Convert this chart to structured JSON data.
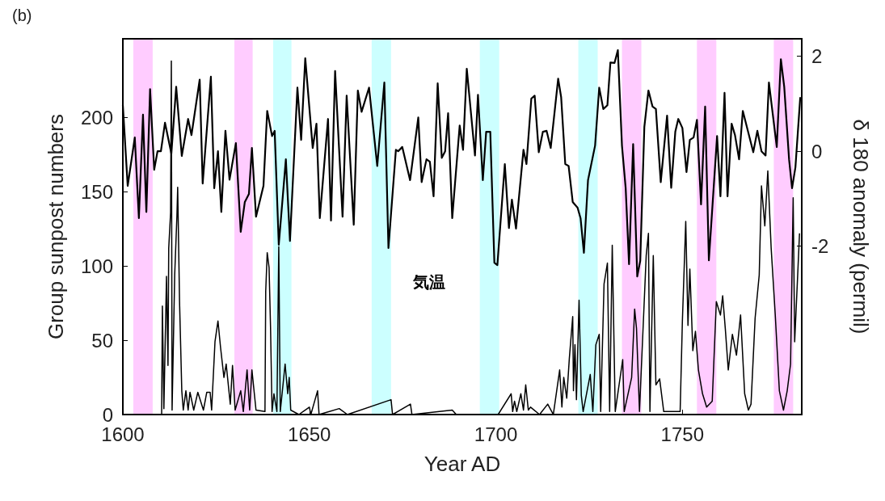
{
  "chart_data": {
    "type": "line",
    "title": "(b)",
    "xlabel": "Year AD",
    "ylabel": "Group sunpost numbers",
    "y2label": "δ 180 anomaly (permil)",
    "annotations": [
      "気温"
    ],
    "xlim": [
      1600,
      1782
    ],
    "xticks": [
      1600,
      1650,
      1700,
      1750
    ],
    "ylim": [
      0,
      253
    ],
    "yticks": [
      0,
      50,
      100,
      150,
      200
    ],
    "y2lim": [
      -5.55,
      2.37
    ],
    "y2ticks": [
      -2,
      0,
      2
    ],
    "grid": false,
    "marker": "none",
    "line_style": "solid",
    "bands": [
      {
        "axis": "x",
        "from": 1602.8,
        "to": 1608.0,
        "color": "#ffccff"
      },
      {
        "axis": "x",
        "from": 1629.9,
        "to": 1634.8,
        "color": "#ffccff"
      },
      {
        "axis": "x",
        "from": 1640.3,
        "to": 1645.2,
        "color": "#ccffff"
      },
      {
        "axis": "x",
        "from": 1666.7,
        "to": 1671.9,
        "color": "#ccffff"
      },
      {
        "axis": "x",
        "from": 1695.7,
        "to": 1700.9,
        "color": "#ccffff"
      },
      {
        "axis": "x",
        "from": 1722.1,
        "to": 1727.3,
        "color": "#ccffff"
      },
      {
        "axis": "x",
        "from": 1733.8,
        "to": 1739.0,
        "color": "#ffccff"
      },
      {
        "axis": "x",
        "from": 1753.9,
        "to": 1759.1,
        "color": "#ffccff"
      },
      {
        "axis": "x",
        "from": 1774.5,
        "to": 1779.7,
        "color": "#ffccff"
      }
    ],
    "series": [
      {
        "color": "#000000",
        "x": [
          1600,
          1610.4,
          1610.6,
          1611.0,
          1611.7,
          1612.1,
          1612.3,
          1612.8,
          1613.0,
          1613.2,
          1613.9,
          1614.5,
          1614.7,
          1615.2,
          1615.8,
          1616.2,
          1616.9,
          1617.5,
          1618.0,
          1619.0,
          1620.1,
          1621.6,
          1622.5,
          1623.4,
          1623.8,
          1624.7,
          1625.5,
          1626.2,
          1627.1,
          1627.7,
          1628.8,
          1629.4,
          1630.1,
          1631.6,
          1632.3,
          1633.3,
          1634.0,
          1634.6,
          1635.7,
          1638.1,
          1638.3,
          1638.7,
          1639.2,
          1639.6,
          1640.0,
          1640.5,
          1641.3,
          1641.8,
          1642.2,
          1643.5,
          1644.2,
          1644.6,
          1645.0,
          1647.2,
          1650.0,
          1650.4,
          1652.2,
          1652.6,
          1658.0,
          1660.2,
          1671.9,
          1672.3,
          1677.1,
          1677.5,
          1688.3,
          1689.4,
          1700.6,
          1704.1,
          1704.5,
          1705.0,
          1705.6,
          1706.7,
          1707.4,
          1708.0,
          1708.7,
          1709.3,
          1711.7,
          1713.9,
          1715.4,
          1717.1,
          1717.7,
          1718.2,
          1719.0,
          1719.7,
          1720.6,
          1720.8,
          1721.2,
          1721.6,
          1722.3,
          1722.9,
          1723.4,
          1725.3,
          1726.0,
          1726.8,
          1727.7,
          1728.1,
          1729.0,
          1729.9,
          1730.5,
          1731.2,
          1732.0,
          1734.0,
          1734.4,
          1736.4,
          1737.2,
          1737.7,
          1738.5,
          1740.3,
          1740.9,
          1741.3,
          1742.2,
          1742.9,
          1743.9,
          1745.0,
          1749.4,
          1750.0,
          1750.9,
          1751.5,
          1752.0,
          1752.8,
          1753.5,
          1754.3,
          1755.4,
          1756.5,
          1758.0,
          1759.1,
          1760.2,
          1760.8,
          1761.5,
          1762.3,
          1763.4,
          1764.5,
          1765.6,
          1766.7,
          1767.7,
          1768.4,
          1769.5,
          1770.6,
          1771.2,
          1772.1,
          1772.9,
          1773.8,
          1774.9,
          1776.0,
          1777.1,
          1778.1,
          1779.0,
          1779.7,
          1780.1,
          1781.0,
          1781.4
        ],
        "values": [
          0,
          0,
          73,
          4,
          93,
          33,
          112,
          136,
          238,
          3,
          94,
          134,
          153,
          76,
          16,
          3,
          16,
          3,
          15,
          3,
          15,
          3,
          15,
          15,
          3,
          49,
          63,
          45,
          25,
          34,
          7,
          33,
          3,
          16,
          2,
          30,
          3,
          30,
          3,
          2,
          83,
          109,
          99,
          58,
          2,
          14,
          2,
          113,
          2,
          34,
          14,
          25,
          3,
          0,
          5,
          0,
          16,
          0,
          4,
          0,
          10,
          0,
          7,
          0,
          3,
          0,
          0,
          14,
          2,
          9,
          2,
          14,
          3,
          20,
          3,
          5,
          0,
          7,
          0,
          30,
          5,
          25,
          11,
          38,
          66,
          16,
          47,
          10,
          77,
          13,
          2,
          27,
          2,
          47,
          54,
          2,
          88,
          102,
          2,
          114,
          2,
          37,
          2,
          25,
          71,
          58,
          2,
          107,
          122,
          2,
          107,
          20,
          24,
          2,
          2,
          63,
          130,
          60,
          98,
          43,
          56,
          30,
          14,
          5,
          9,
          76,
          67,
          80,
          58,
          30,
          54,
          40,
          67,
          14,
          3,
          7,
          65,
          94,
          154,
          127,
          164,
          112,
          67,
          16,
          3,
          16,
          34,
          146,
          49,
          99,
          122
        ]
      },
      {
        "color": "#000000",
        "axis": "y2",
        "x": [
          1600,
          1601.3,
          1603.2,
          1604.3,
          1605.4,
          1606.3,
          1607.3,
          1608.4,
          1609.3,
          1610.2,
          1611.3,
          1613,
          1614.3,
          1615.8,
          1617.5,
          1618.4,
          1620.6,
          1621.4,
          1623.6,
          1624.5,
          1625.5,
          1626.4,
          1627.5,
          1628.6,
          1630.3,
          1631.6,
          1632.7,
          1633.8,
          1634.6,
          1635.7,
          1637.7,
          1638.7,
          1640,
          1640.7,
          1641.8,
          1643.7,
          1644.8,
          1646.8,
          1647.8,
          1648.9,
          1650.9,
          1651.9,
          1652.8,
          1655,
          1655.8,
          1656.9,
          1658.9,
          1660,
          1661.9,
          1663,
          1664,
          1666,
          1668.2,
          1670.1,
          1671.2,
          1673.2,
          1673.8,
          1674.9,
          1677,
          1679.2,
          1680.1,
          1681.4,
          1682.3,
          1683.3,
          1684.4,
          1685.5,
          1686.4,
          1687.2,
          1688.3,
          1690.3,
          1691.2,
          1692.2,
          1694.4,
          1695.2,
          1696.5,
          1697.4,
          1698.5,
          1699.6,
          1700.4,
          1702.4,
          1703.5,
          1704.3,
          1705.4,
          1707.4,
          1708.2,
          1709.5,
          1710.4,
          1711.5,
          1712.6,
          1713.6,
          1714.7,
          1716.7,
          1717.5,
          1718.6,
          1719.5,
          1720.6,
          1721.9,
          1722.7,
          1723.6,
          1724.7,
          1726.6,
          1727.7,
          1728.8,
          1729.9,
          1730.7,
          1731.8,
          1732.7,
          1733.8,
          1734.8,
          1735.7,
          1736.8,
          1737.9,
          1738.7,
          1739.8,
          1740.9,
          1742,
          1742.9,
          1744.2,
          1745.9,
          1747,
          1748.1,
          1748.9,
          1750,
          1751.1,
          1752,
          1753,
          1753.9,
          1755,
          1756.1,
          1757.1,
          1759.3,
          1760.2,
          1761.3,
          1762.1,
          1763.2,
          1764.1,
          1765.2,
          1766.2,
          1769,
          1770.1,
          1771.2,
          1772.3,
          1773.2,
          1775.3,
          1776.4,
          1777.3,
          1778.6,
          1779.4,
          1780.3,
          1781.6
        ],
        "values": [
          0.97,
          -0.73,
          0.29,
          -1.41,
          0.77,
          -1.28,
          1.31,
          -0.39,
          0,
          0,
          0.6,
          -0.05,
          1.36,
          -0.1,
          0.68,
          0.34,
          1.51,
          -0.68,
          1.57,
          -0.78,
          0,
          -1.28,
          0.43,
          -0.6,
          0.17,
          -1.7,
          -1.07,
          -0.9,
          0.07,
          -1.38,
          -0.73,
          0.85,
          0.32,
          0.43,
          -1.97,
          -0.17,
          -1.89,
          1.34,
          0.24,
          1.96,
          0.07,
          0.58,
          -1.41,
          0.68,
          -1.46,
          1.69,
          -1.38,
          1.17,
          -1.55,
          1.28,
          0.83,
          1.34,
          -0.31,
          1.45,
          -2.04,
          0.03,
          0,
          0.09,
          -0.61,
          0.71,
          -0.65,
          -0.17,
          -0.22,
          -0.95,
          1.43,
          -0.14,
          0,
          0.8,
          -1.41,
          0.54,
          0.03,
          1.74,
          -0.09,
          1.19,
          -0.61,
          0.41,
          0.41,
          -2.35,
          -2.4,
          -0.27,
          -1.62,
          -1.02,
          -1.63,
          0.03,
          -0.27,
          1.11,
          1.17,
          -0.02,
          0.41,
          0.43,
          0.07,
          1.53,
          1.14,
          -0.27,
          -0.31,
          -1.07,
          -1.19,
          -1.41,
          -2.14,
          -0.61,
          0.12,
          1.34,
          0.89,
          0.97,
          1.87,
          1.86,
          2.13,
          0.12,
          -0.78,
          -2.38,
          0.15,
          -2.64,
          -2.31,
          0.51,
          1.28,
          0.94,
          0.89,
          -0.65,
          0.75,
          -0.77,
          0.41,
          0.68,
          0.49,
          -0.44,
          0.24,
          0.29,
          0.66,
          -1.12,
          0.94,
          -2.3,
          0.32,
          -0.95,
          1.23,
          -0.95,
          0.58,
          0.34,
          -0.17,
          0.85,
          -0.02,
          0.43,
          0,
          -0.09,
          1.45,
          0.09,
          1.94,
          1.36,
          -0.17,
          -0.78,
          -0.34,
          1.14
        ]
      }
    ]
  }
}
